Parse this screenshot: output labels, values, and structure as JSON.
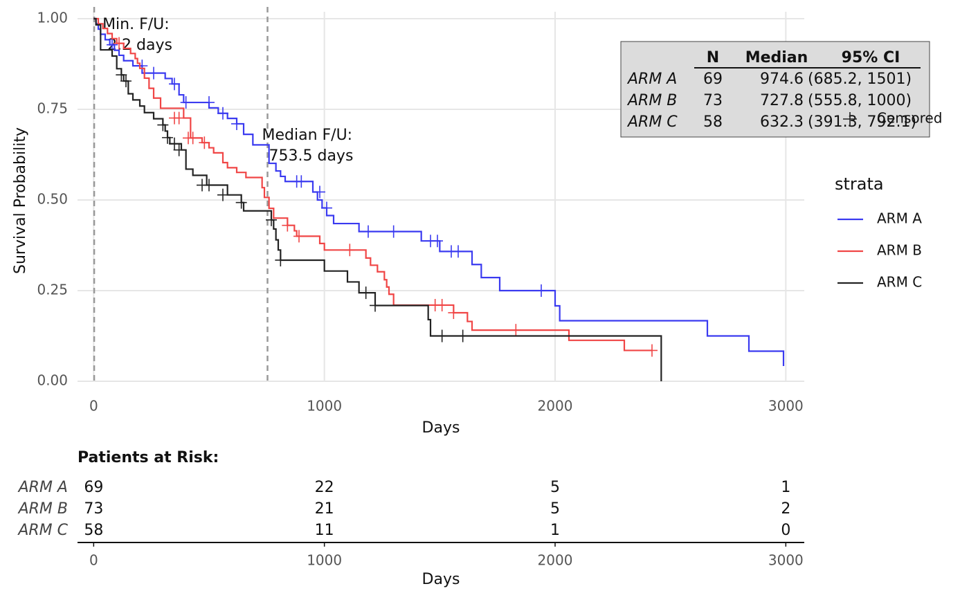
{
  "chart_data": {
    "type": "step",
    "x_label": "Days",
    "y_label": "Survival Probability",
    "xlim": [
      -70,
      3080
    ],
    "ylim": [
      0,
      1
    ],
    "xticks": [
      0,
      1000,
      2000,
      3000
    ],
    "yticks": [
      {
        "value": 0,
        "label": "0.00"
      },
      {
        "value": 0.25,
        "label": "0.25"
      },
      {
        "value": 0.5,
        "label": "0.50"
      },
      {
        "value": 0.75,
        "label": "0.75"
      },
      {
        "value": 1,
        "label": "1.00"
      }
    ],
    "grid": true,
    "legend_title": "strata",
    "censor_label": "Censored",
    "annotations": [
      {
        "x": 2.2,
        "lines": [
          "Min. F/U:",
          "2.2 days"
        ]
      },
      {
        "x": 753.5,
        "lines": [
          "Median F/U:",
          "753.5 days"
        ]
      }
    ],
    "series": [
      {
        "name": "ARM A",
        "color": "#3a3af0",
        "x": [
          0,
          10,
          20,
          30,
          50,
          70,
          90,
          110,
          130,
          170,
          210,
          310,
          340,
          370,
          390,
          450,
          500,
          540,
          580,
          620,
          650,
          690,
          760,
          790,
          810,
          830,
          870,
          950,
          970,
          990,
          1010,
          1040,
          1150,
          1420,
          1500,
          1600,
          1640,
          1680,
          1760,
          2000,
          2020,
          2660,
          2840,
          2990
        ],
        "values": [
          1.0,
          0.986,
          0.971,
          0.957,
          0.942,
          0.928,
          0.913,
          0.899,
          0.884,
          0.87,
          0.85,
          0.835,
          0.82,
          0.79,
          0.769,
          0.769,
          0.754,
          0.739,
          0.725,
          0.71,
          0.681,
          0.652,
          0.601,
          0.58,
          0.565,
          0.551,
          0.551,
          0.522,
          0.5,
          0.478,
          0.457,
          0.435,
          0.413,
          0.387,
          0.358,
          0.358,
          0.322,
          0.286,
          0.25,
          0.208,
          0.167,
          0.125,
          0.083,
          0.042
        ],
        "censored_x": [
          80,
          210,
          260,
          350,
          400,
          500,
          560,
          620,
          880,
          900,
          980,
          1010,
          1190,
          1300,
          1460,
          1490,
          1550,
          1580,
          1940
        ],
        "censored_y": [
          0.928,
          0.87,
          0.85,
          0.82,
          0.769,
          0.769,
          0.739,
          0.71,
          0.551,
          0.551,
          0.522,
          0.478,
          0.413,
          0.413,
          0.387,
          0.387,
          0.358,
          0.358,
          0.25
        ]
      },
      {
        "name": "ARM B",
        "color": "#f04545",
        "x": [
          0,
          20,
          40,
          60,
          80,
          100,
          130,
          160,
          180,
          190,
          200,
          220,
          240,
          260,
          290,
          390,
          420,
          470,
          500,
          520,
          560,
          580,
          620,
          660,
          730,
          740,
          760,
          780,
          840,
          870,
          880,
          980,
          1000,
          1180,
          1200,
          1230,
          1260,
          1270,
          1280,
          1300,
          1560,
          1620,
          1640,
          2060,
          2300,
          2420
        ],
        "values": [
          1.0,
          0.986,
          0.973,
          0.959,
          0.945,
          0.932,
          0.918,
          0.904,
          0.89,
          0.877,
          0.863,
          0.836,
          0.808,
          0.781,
          0.753,
          0.726,
          0.671,
          0.658,
          0.644,
          0.63,
          0.603,
          0.589,
          0.576,
          0.562,
          0.534,
          0.507,
          0.477,
          0.45,
          0.43,
          0.415,
          0.4,
          0.38,
          0.362,
          0.34,
          0.32,
          0.302,
          0.28,
          0.26,
          0.24,
          0.21,
          0.189,
          0.165,
          0.141,
          0.113,
          0.085,
          0.085
        ],
        "censored_x": [
          110,
          350,
          370,
          410,
          430,
          480,
          840,
          890,
          1110,
          1480,
          1510,
          1560,
          1830,
          2420
        ],
        "censored_y": [
          0.932,
          0.726,
          0.726,
          0.671,
          0.671,
          0.658,
          0.43,
          0.4,
          0.362,
          0.21,
          0.21,
          0.189,
          0.141,
          0.085
        ]
      },
      {
        "name": "ARM C",
        "color": "#222222",
        "x": [
          0,
          10,
          30,
          70,
          80,
          100,
          120,
          130,
          150,
          170,
          200,
          220,
          260,
          300,
          310,
          320,
          330,
          380,
          400,
          430,
          490,
          580,
          640,
          650,
          760,
          770,
          780,
          790,
          800,
          810,
          1000,
          1100,
          1150,
          1220,
          1450,
          1460,
          2460
        ],
        "values": [
          1.0,
          0.983,
          0.914,
          0.914,
          0.897,
          0.862,
          0.845,
          0.828,
          0.793,
          0.776,
          0.759,
          0.741,
          0.724,
          0.707,
          0.69,
          0.672,
          0.655,
          0.638,
          0.585,
          0.568,
          0.541,
          0.514,
          0.493,
          0.47,
          0.47,
          0.445,
          0.42,
          0.39,
          0.362,
          0.334,
          0.304,
          0.274,
          0.244,
          0.209,
          0.17,
          0.125,
          0
        ],
        "censored_x": [
          120,
          140,
          300,
          320,
          350,
          370,
          470,
          500,
          560,
          640,
          770,
          810,
          1180,
          1220,
          1510,
          1600
        ],
        "censored_y": [
          0.845,
          0.828,
          0.707,
          0.672,
          0.655,
          0.638,
          0.541,
          0.541,
          0.514,
          0.493,
          0.445,
          0.334,
          0.244,
          0.209,
          0.125,
          0.125
        ]
      }
    ],
    "summary_table": {
      "header": [
        "N",
        "Median",
        "95% CI"
      ],
      "rows": [
        [
          "ARM A",
          "69",
          "974.6",
          "(685.2, 1501)"
        ],
        [
          "ARM B",
          "73",
          "727.8",
          "(555.8, 1000)"
        ],
        [
          "ARM C",
          "58",
          "632.3",
          "(391.3, 792.1)"
        ]
      ]
    },
    "risk_table": {
      "title": "Patients at Risk:",
      "x_label": "Days",
      "times": [
        0,
        1000,
        2000,
        3000
      ],
      "rows": [
        {
          "name": "ARM A",
          "counts": [
            69,
            22,
            5,
            1
          ]
        },
        {
          "name": "ARM B",
          "counts": [
            73,
            21,
            5,
            2
          ]
        },
        {
          "name": "ARM C",
          "counts": [
            58,
            11,
            1,
            0
          ]
        }
      ]
    }
  }
}
